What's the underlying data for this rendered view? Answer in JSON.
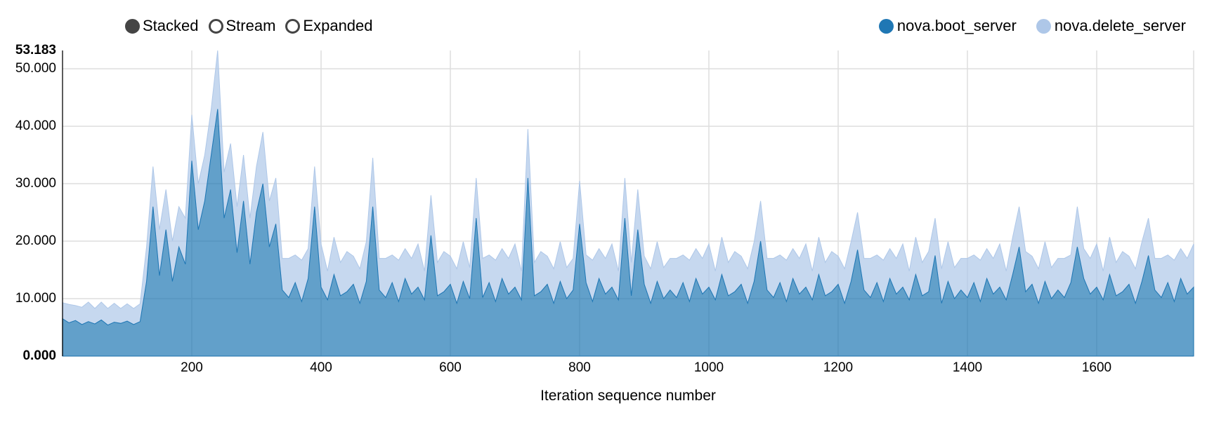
{
  "controls": {
    "color": "#454545",
    "items": [
      {
        "label": "Stacked",
        "active": true
      },
      {
        "label": "Stream",
        "active": false
      },
      {
        "label": "Expanded",
        "active": false
      }
    ]
  },
  "legend": {
    "items": [
      {
        "label": "nova.boot_server",
        "color": "#1f77b4"
      },
      {
        "label": "nova.delete_server",
        "color": "#aec7e8"
      }
    ]
  },
  "chart_data": {
    "type": "area",
    "mode": "stacked",
    "xlabel": "Iteration sequence number",
    "ylabel": "",
    "xlim": [
      0,
      1750
    ],
    "ylim": [
      0,
      53.183
    ],
    "y_max_label": "53.183",
    "grid": true,
    "legend_position": "top-right",
    "background": "#ffffff",
    "gridline_color": "#dedede",
    "x_ticks": [
      {
        "value": 200,
        "label": "200"
      },
      {
        "value": 400,
        "label": "400"
      },
      {
        "value": 600,
        "label": "600"
      },
      {
        "value": 800,
        "label": "800"
      },
      {
        "value": 1000,
        "label": "1000"
      },
      {
        "value": 1200,
        "label": "1200"
      },
      {
        "value": 1400,
        "label": "1400"
      },
      {
        "value": 1600,
        "label": "1600"
      }
    ],
    "y_ticks": [
      {
        "value": 0,
        "label": "0.000",
        "bold": true
      },
      {
        "value": 10,
        "label": "10.000"
      },
      {
        "value": 20,
        "label": "20.000"
      },
      {
        "value": 30,
        "label": "30.000"
      },
      {
        "value": 40,
        "label": "40.000"
      },
      {
        "value": 50,
        "label": "50.000"
      },
      {
        "value": 53.183,
        "label": "53.183",
        "bold": true,
        "no_grid": true
      }
    ],
    "x_start": 0,
    "x_step": 10,
    "series": [
      {
        "name": "nova.boot_server",
        "color": "#1f77b4",
        "fill_opacity": 0.7,
        "values": [
          6.5,
          5.8,
          6.2,
          5.5,
          6.0,
          5.6,
          6.3,
          5.4,
          5.9,
          5.7,
          6.1,
          5.5,
          6.0,
          13,
          26,
          14,
          22,
          13,
          19,
          16,
          34,
          22,
          27,
          35,
          42.983,
          24,
          29,
          18,
          27,
          16,
          25,
          30,
          19,
          23,
          11.5,
          10.2,
          12.8,
          9.5,
          13.5,
          26,
          12.0,
          9.8,
          14.2,
          10.5,
          11.2,
          12.5,
          9.2,
          13.0,
          26,
          11.5,
          10.2,
          12.8,
          9.5,
          13.5,
          10.8,
          12.0,
          9.8,
          21,
          10.5,
          11.2,
          12.5,
          9.2,
          13.0,
          10.0,
          24,
          10.2,
          12.8,
          9.5,
          13.5,
          10.8,
          12.0,
          9.8,
          31,
          10.5,
          11.2,
          12.5,
          9.2,
          13.0,
          10.0,
          11.5,
          23,
          12.8,
          9.5,
          13.5,
          10.8,
          12.0,
          9.8,
          24,
          10.5,
          22,
          12.5,
          9.2,
          13.0,
          10.0,
          11.5,
          10.2,
          12.8,
          9.5,
          13.5,
          10.8,
          12.0,
          9.8,
          14.2,
          10.5,
          11.2,
          12.5,
          9.2,
          13.0,
          20,
          11.5,
          10.2,
          12.8,
          9.5,
          13.5,
          10.8,
          12.0,
          9.8,
          14.2,
          10.5,
          11.2,
          12.5,
          9.2,
          13.0,
          18.5,
          11.5,
          10.2,
          12.8,
          9.5,
          13.5,
          10.8,
          12.0,
          9.8,
          14.2,
          10.5,
          11.2,
          17.5,
          9.2,
          13.0,
          10.0,
          11.5,
          10.2,
          12.8,
          9.5,
          13.5,
          10.8,
          12.0,
          9.8,
          14.2,
          19,
          11.2,
          12.5,
          9.2,
          13.0,
          10.0,
          11.5,
          10.2,
          12.8,
          19,
          13.5,
          10.8,
          12.0,
          9.8,
          14.2,
          10.5,
          11.2,
          12.5,
          9.2,
          13.0,
          17.5,
          11.5,
          10.2,
          12.8,
          9.5,
          13.5,
          10.8,
          12.0
        ]
      },
      {
        "name": "nova.delete_server",
        "color": "#aec7e8",
        "fill_opacity": 0.7,
        "values": [
          2.8,
          3.2,
          2.6,
          3.0,
          3.4,
          2.7,
          3.1,
          2.9,
          3.3,
          2.6,
          3.0,
          2.8,
          3.1,
          6,
          7,
          8,
          7,
          7,
          7,
          8,
          8,
          8,
          8,
          8,
          10.2,
          8,
          8,
          8,
          8,
          8,
          8,
          9,
          8,
          8,
          5.5,
          6.8,
          4.8,
          7.2,
          5.2,
          7,
          7.5,
          5.0,
          6.5,
          5.8,
          7.0,
          4.9,
          6.0,
          6.9,
          8.5,
          5.5,
          6.8,
          4.8,
          7.2,
          5.2,
          6.2,
          7.5,
          5.0,
          7,
          5.8,
          7.0,
          4.9,
          6.0,
          6.9,
          5.4,
          7,
          6.8,
          4.8,
          7.2,
          5.2,
          6.2,
          7.5,
          5.0,
          8.5,
          5.8,
          7.0,
          4.9,
          6.0,
          6.9,
          5.4,
          5.5,
          7.5,
          4.8,
          7.2,
          5.2,
          6.2,
          7.5,
          5.0,
          7,
          5.8,
          7,
          4.9,
          6.0,
          6.9,
          5.4,
          5.5,
          6.8,
          4.8,
          7.2,
          5.2,
          6.2,
          7.5,
          5.0,
          6.5,
          5.8,
          7.0,
          4.9,
          6.0,
          6.9,
          7,
          5.5,
          6.8,
          4.8,
          7.2,
          5.2,
          6.2,
          7.5,
          5.0,
          6.5,
          5.8,
          7.0,
          4.9,
          6.0,
          6.9,
          6.5,
          5.5,
          6.8,
          4.8,
          7.2,
          5.2,
          6.2,
          7.5,
          5.0,
          6.5,
          5.8,
          7.0,
          6.5,
          6.0,
          6.9,
          5.4,
          5.5,
          6.8,
          4.8,
          7.2,
          5.2,
          6.2,
          7.5,
          5.0,
          6.5,
          7,
          7.0,
          4.9,
          6.0,
          6.9,
          5.4,
          5.5,
          6.8,
          4.8,
          7,
          5.2,
          6.2,
          7.5,
          5.0,
          6.5,
          5.8,
          7.0,
          4.9,
          6.0,
          6.9,
          6.5,
          5.5,
          6.8,
          4.8,
          7.2,
          5.2,
          6.2,
          7.5
        ]
      }
    ]
  }
}
